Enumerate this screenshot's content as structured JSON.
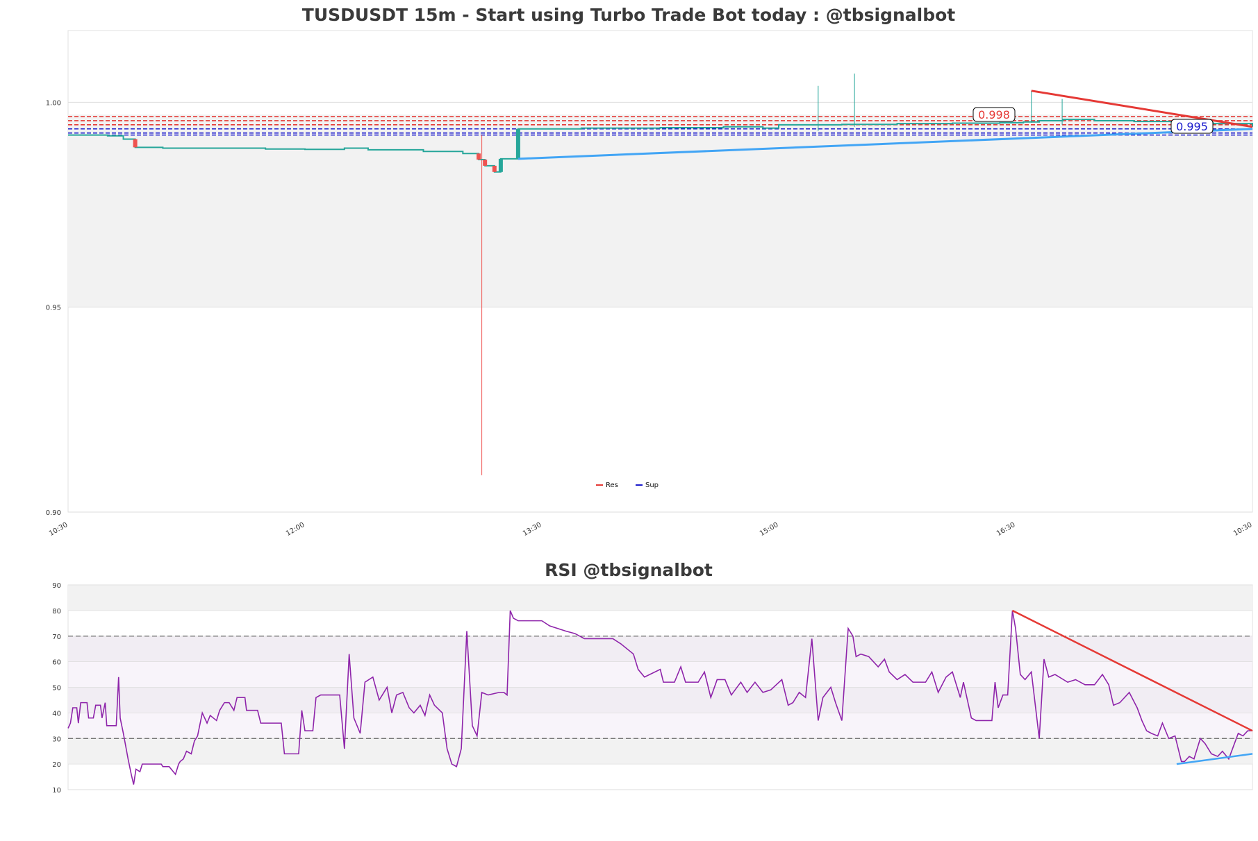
{
  "colors": {
    "up": "#26a69a",
    "down": "#ef5350",
    "resistance": "#e53935",
    "support": "#1a1acc",
    "trend_support": "#42a5f5",
    "trend_resistance": "#e53935",
    "rsi": "#8e24aa",
    "band": "#f2f2f2",
    "grid": "#dddddd"
  },
  "chart_data": [
    {
      "type": "candlestick",
      "title": "TUSDUSDT 15m - Start using Turbo Trade Bot today : @tbsignalbot",
      "xlabel": "",
      "ylabel": "",
      "ylim": [
        0.9,
        1.0175
      ],
      "yticks": [
        "0.90",
        "0.95",
        "1.00"
      ],
      "xticks": [
        "10:30",
        "12:00",
        "13:30",
        "15:00",
        "16:30",
        "10:30"
      ],
      "xlim_minutes": [
        0,
        1500
      ],
      "shaded_band": [
        0.95,
        0.997
      ],
      "legend": {
        "position": "bottom-center",
        "entries": [
          "Res",
          "Sup"
        ]
      },
      "resistance_lines": [
        0.9965,
        0.9955,
        0.9945
      ],
      "support_lines": [
        0.9935,
        0.9925,
        0.992
      ],
      "resistance_label": "0.998",
      "support_label": "0.995",
      "trendlines": [
        {
          "role": "support",
          "points": [
            [
              570,
              0.9862
            ],
            [
              1500,
              0.9935
            ]
          ]
        },
        {
          "role": "resistance",
          "points": [
            [
              1220,
              1.0028
            ],
            [
              1500,
              0.994
            ]
          ]
        }
      ],
      "series_close": [
        [
          0,
          0.992
        ],
        [
          50,
          0.9918
        ],
        [
          70,
          0.991
        ],
        [
          85,
          0.989
        ],
        [
          120,
          0.9888
        ],
        [
          200,
          0.9888
        ],
        [
          250,
          0.9886
        ],
        [
          300,
          0.9885
        ],
        [
          350,
          0.9888
        ],
        [
          380,
          0.9884
        ],
        [
          450,
          0.988
        ],
        [
          500,
          0.9875
        ],
        [
          520,
          0.986
        ],
        [
          528,
          0.9845
        ],
        [
          540,
          0.983
        ],
        [
          548,
          0.9862
        ],
        [
          562,
          0.9862
        ],
        [
          570,
          0.9935
        ],
        [
          650,
          0.9937
        ],
        [
          750,
          0.9938
        ],
        [
          830,
          0.994
        ],
        [
          880,
          0.9937
        ],
        [
          900,
          0.9945
        ],
        [
          980,
          0.9946
        ],
        [
          1050,
          0.9948
        ],
        [
          1120,
          0.9949
        ],
        [
          1180,
          0.995
        ],
        [
          1210,
          0.9952
        ],
        [
          1230,
          0.9955
        ],
        [
          1260,
          0.9958
        ],
        [
          1300,
          0.9955
        ],
        [
          1350,
          0.9953
        ],
        [
          1400,
          0.995
        ],
        [
          1450,
          0.9948
        ],
        [
          1500,
          0.994
        ]
      ],
      "wicks": [
        {
          "x": 524,
          "high": 0.992,
          "low": 0.909
        },
        {
          "x": 950,
          "high": 1.004,
          "low": 0.993
        },
        {
          "x": 996,
          "high": 1.007,
          "low": 0.994
        },
        {
          "x": 1220,
          "high": 1.0028,
          "low": 0.995
        },
        {
          "x": 1259,
          "high": 1.0008,
          "low": 0.9945
        }
      ]
    },
    {
      "type": "line",
      "title": "RSI @tbsignalbot",
      "xlabel": "",
      "ylabel": "",
      "ylim": [
        10,
        90
      ],
      "yticks": [
        "10",
        "20",
        "30",
        "40",
        "50",
        "60",
        "70",
        "80",
        "90"
      ],
      "xlim_minutes": [
        0,
        1500
      ],
      "guide_lines": [
        30,
        70
      ],
      "series": [
        {
          "values": [
            [
              0,
              34
            ],
            [
              3,
              36
            ],
            [
              6,
              42
            ],
            [
              11,
              42
            ],
            [
              13,
              36
            ],
            [
              16,
              44
            ],
            [
              24,
              44
            ],
            [
              26,
              38
            ],
            [
              32,
              38
            ],
            [
              35,
              43
            ],
            [
              41,
              43
            ],
            [
              43,
              38
            ],
            [
              47,
              44
            ],
            [
              49,
              35
            ],
            [
              61,
              35
            ],
            [
              64,
              54
            ],
            [
              66,
              38
            ],
            [
              70,
              32
            ],
            [
              76,
              22
            ],
            [
              80,
              16
            ],
            [
              83,
              12
            ],
            [
              86,
              18
            ],
            [
              91,
              17
            ],
            [
              94,
              20
            ],
            [
              118,
              20
            ],
            [
              120,
              19
            ],
            [
              128,
              19
            ],
            [
              136,
              16
            ],
            [
              140,
              20
            ],
            [
              142,
              21
            ],
            [
              146,
              22
            ],
            [
              150,
              25
            ],
            [
              156,
              24
            ],
            [
              160,
              29
            ],
            [
              164,
              31
            ],
            [
              170,
              40
            ],
            [
              176,
              36
            ],
            [
              180,
              39
            ],
            [
              188,
              37
            ],
            [
              192,
              41
            ],
            [
              198,
              44
            ],
            [
              204,
              44
            ],
            [
              210,
              41
            ],
            [
              214,
              46
            ],
            [
              224,
              46
            ],
            [
              226,
              41
            ],
            [
              240,
              41
            ],
            [
              244,
              36
            ],
            [
              250,
              36
            ],
            [
              270,
              36
            ],
            [
              274,
              24
            ],
            [
              292,
              24
            ],
            [
              296,
              41
            ],
            [
              300,
              33
            ],
            [
              310,
              33
            ],
            [
              314,
              46
            ],
            [
              320,
              47
            ],
            [
              344,
              47
            ],
            [
              350,
              26
            ],
            [
              356,
              63
            ],
            [
              362,
              38
            ],
            [
              370,
              32
            ],
            [
              376,
              52
            ],
            [
              386,
              54
            ],
            [
              394,
              45
            ],
            [
              398,
              47
            ],
            [
              404,
              50
            ],
            [
              410,
              40
            ],
            [
              416,
              47
            ],
            [
              424,
              48
            ],
            [
              432,
              42
            ],
            [
              438,
              40
            ],
            [
              446,
              43
            ],
            [
              452,
              39
            ],
            [
              458,
              47
            ],
            [
              464,
              43
            ],
            [
              474,
              40
            ],
            [
              480,
              26
            ],
            [
              486,
              20
            ],
            [
              492,
              19
            ],
            [
              498,
              26
            ],
            [
              505,
              72
            ],
            [
              512,
              35
            ],
            [
              518,
              31
            ],
            [
              524,
              48
            ],
            [
              532,
              47
            ],
            [
              546,
              48
            ],
            [
              552,
              48
            ],
            [
              556,
              47
            ],
            [
              560,
              80
            ],
            [
              564,
              77
            ],
            [
              570,
              76
            ],
            [
              600,
              76
            ],
            [
              610,
              74
            ],
            [
              630,
              72
            ],
            [
              642,
              71
            ],
            [
              654,
              69
            ],
            [
              690,
              69
            ],
            [
              700,
              67
            ],
            [
              716,
              63
            ],
            [
              722,
              57
            ],
            [
              730,
              54
            ],
            [
              750,
              57
            ],
            [
              754,
              52
            ],
            [
              768,
              52
            ],
            [
              776,
              58
            ],
            [
              782,
              52
            ],
            [
              798,
              52
            ],
            [
              806,
              56
            ],
            [
              814,
              46
            ],
            [
              822,
              53
            ],
            [
              832,
              53
            ],
            [
              840,
              47
            ],
            [
              852,
              52
            ],
            [
              860,
              48
            ],
            [
              870,
              52
            ],
            [
              880,
              48
            ],
            [
              890,
              49
            ],
            [
              904,
              53
            ],
            [
              912,
              43
            ],
            [
              918,
              44
            ],
            [
              926,
              48
            ],
            [
              934,
              46
            ],
            [
              942,
              69
            ],
            [
              950,
              37
            ],
            [
              956,
              46
            ],
            [
              966,
              50
            ],
            [
              972,
              44
            ],
            [
              980,
              37
            ],
            [
              988,
              73
            ],
            [
              994,
              70
            ],
            [
              998,
              62
            ],
            [
              1004,
              63
            ],
            [
              1014,
              62
            ],
            [
              1026,
              58
            ],
            [
              1034,
              61
            ],
            [
              1040,
              56
            ],
            [
              1050,
              53
            ],
            [
              1060,
              55
            ],
            [
              1070,
              52
            ],
            [
              1086,
              52
            ],
            [
              1094,
              56
            ],
            [
              1102,
              48
            ],
            [
              1112,
              54
            ],
            [
              1120,
              56
            ],
            [
              1130,
              46
            ],
            [
              1134,
              52
            ],
            [
              1144,
              38
            ],
            [
              1150,
              37
            ],
            [
              1170,
              37
            ],
            [
              1174,
              52
            ],
            [
              1178,
              42
            ],
            [
              1184,
              47
            ],
            [
              1190,
              47
            ],
            [
              1196,
              80
            ],
            [
              1200,
              73
            ],
            [
              1206,
              55
            ],
            [
              1212,
              53
            ],
            [
              1220,
              56
            ],
            [
              1230,
              30
            ],
            [
              1236,
              61
            ],
            [
              1242,
              54
            ],
            [
              1250,
              55
            ],
            [
              1266,
              52
            ],
            [
              1276,
              53
            ],
            [
              1288,
              51
            ],
            [
              1300,
              51
            ],
            [
              1310,
              55
            ],
            [
              1318,
              51
            ],
            [
              1324,
              43
            ],
            [
              1332,
              44
            ],
            [
              1338,
              46
            ],
            [
              1344,
              48
            ],
            [
              1354,
              42
            ],
            [
              1360,
              37
            ],
            [
              1366,
              33
            ],
            [
              1372,
              32
            ],
            [
              1380,
              31
            ],
            [
              1386,
              36
            ],
            [
              1394,
              30
            ],
            [
              1402,
              31
            ],
            [
              1410,
              21
            ],
            [
              1414,
              21
            ],
            [
              1420,
              23
            ],
            [
              1426,
              22
            ],
            [
              1434,
              30
            ],
            [
              1440,
              28
            ],
            [
              1448,
              24
            ],
            [
              1456,
              23
            ],
            [
              1462,
              25
            ],
            [
              1470,
              22
            ],
            [
              1476,
              27
            ],
            [
              1482,
              32
            ],
            [
              1488,
              31
            ],
            [
              1494,
              33
            ],
            [
              1500,
              33
            ]
          ]
        }
      ],
      "trendlines": [
        {
          "role": "resistance",
          "points": [
            [
              1196,
              80
            ],
            [
              1500,
              33
            ]
          ]
        },
        {
          "role": "support",
          "points": [
            [
              1404,
              20
            ],
            [
              1500,
              24
            ]
          ]
        }
      ]
    }
  ]
}
